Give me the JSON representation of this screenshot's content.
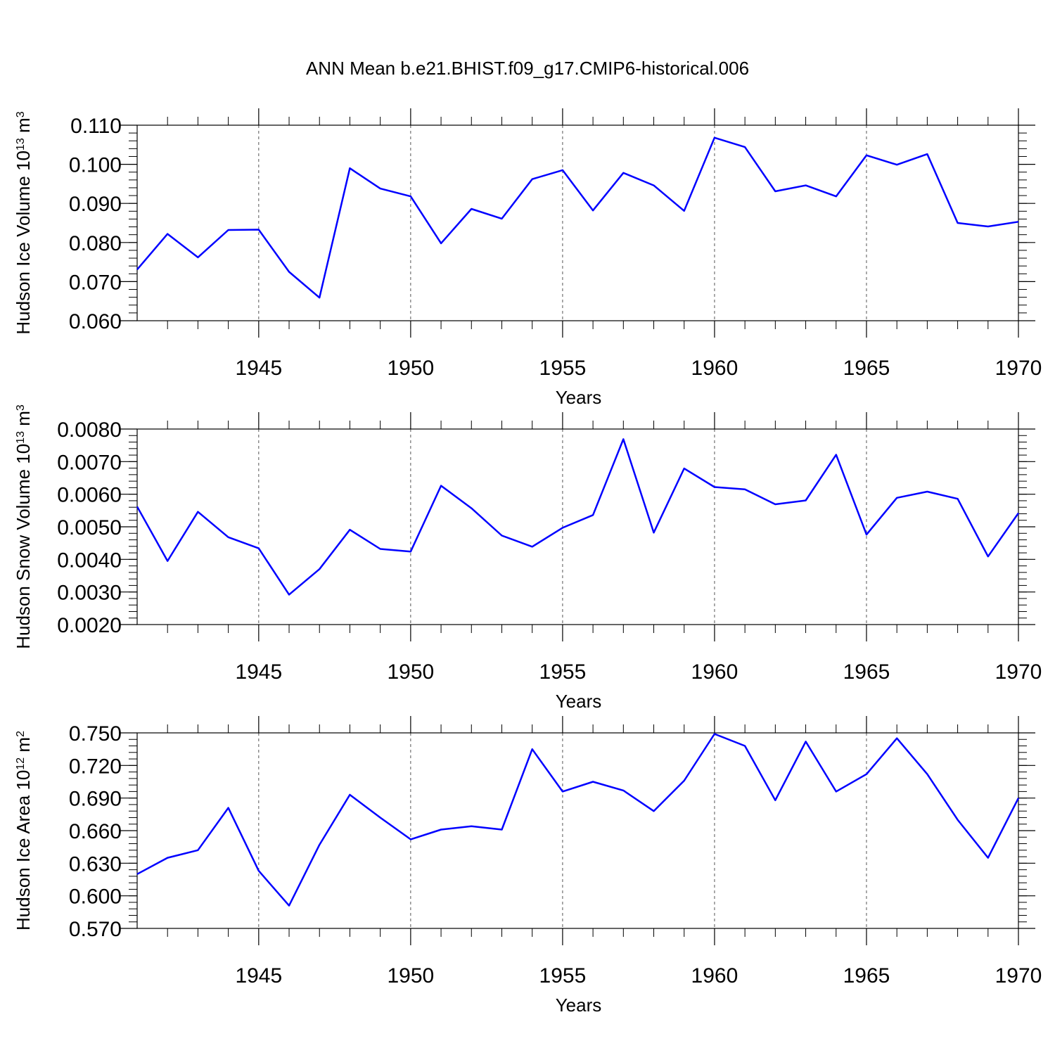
{
  "title": "ANN Mean b.e21.BHIST.f09_g17.CMIP6-historical.006",
  "colors": {
    "series": "#0000ff",
    "axis": "#000000",
    "grid": "#555555"
  },
  "chart_data": [
    {
      "type": "line",
      "title": "",
      "xlabel": "Years",
      "ylabel": "Hudson Ice Volume 10",
      "ylabel_exponent": "13",
      "ylabel_unit": "m",
      "ylabel_unit_exponent": "3",
      "xlim": [
        1941,
        1970
      ],
      "ylim": [
        0.06,
        0.11
      ],
      "x_ticks": [
        1945,
        1950,
        1955,
        1960,
        1965,
        1970
      ],
      "x_tick_labels": [
        "1945",
        "1950",
        "1955",
        "1960",
        "1965",
        "1970"
      ],
      "y_ticks": [
        0.06,
        0.07,
        0.08,
        0.09,
        0.1,
        0.11
      ],
      "y_tick_labels": [
        "0.060",
        "0.070",
        "0.080",
        "0.090",
        "0.100",
        "0.110"
      ],
      "y_minor_step": 0.002,
      "grid": "vertical dashed at major x ticks",
      "x": [
        1941,
        1942,
        1943,
        1944,
        1945,
        1946,
        1947,
        1948,
        1949,
        1950,
        1951,
        1952,
        1953,
        1954,
        1955,
        1956,
        1957,
        1958,
        1959,
        1960,
        1961,
        1962,
        1963,
        1964,
        1965,
        1966,
        1967,
        1968,
        1969,
        1970
      ],
      "series": [
        {
          "color": "#0000ff",
          "values": [
            0.0731,
            0.0822,
            0.0762,
            0.0832,
            0.0833,
            0.0725,
            0.0659,
            0.099,
            0.0938,
            0.0918,
            0.0798,
            0.0886,
            0.0861,
            0.0962,
            0.0985,
            0.0882,
            0.0978,
            0.0946,
            0.0881,
            0.1068,
            0.1044,
            0.0931,
            0.0946,
            0.0918,
            0.1023,
            0.0999,
            0.1026,
            0.085,
            0.0841,
            0.0853
          ]
        }
      ]
    },
    {
      "type": "line",
      "title": "",
      "xlabel": "Years",
      "ylabel": "Hudson Snow Volume 10",
      "ylabel_exponent": "13",
      "ylabel_unit": "m",
      "ylabel_unit_exponent": "3",
      "xlim": [
        1941,
        1970
      ],
      "ylim": [
        0.002,
        0.008
      ],
      "x_ticks": [
        1945,
        1950,
        1955,
        1960,
        1965,
        1970
      ],
      "x_tick_labels": [
        "1945",
        "1950",
        "1955",
        "1960",
        "1965",
        "1970"
      ],
      "y_ticks": [
        0.002,
        0.003,
        0.004,
        0.005,
        0.006,
        0.007,
        0.008
      ],
      "y_tick_labels": [
        "0.0020",
        "0.0030",
        "0.0040",
        "0.0050",
        "0.0060",
        "0.0070",
        "0.0080"
      ],
      "y_minor_step": 0.0002,
      "grid": "vertical dashed at major x ticks",
      "x": [
        1941,
        1942,
        1943,
        1944,
        1945,
        1946,
        1947,
        1948,
        1949,
        1950,
        1951,
        1952,
        1953,
        1954,
        1955,
        1956,
        1957,
        1958,
        1959,
        1960,
        1961,
        1962,
        1963,
        1964,
        1965,
        1966,
        1967,
        1968,
        1969,
        1970
      ],
      "series": [
        {
          "color": "#0000ff",
          "values": [
            0.00562,
            0.00395,
            0.00546,
            0.00468,
            0.00434,
            0.00292,
            0.0037,
            0.00491,
            0.00432,
            0.00424,
            0.00626,
            0.00557,
            0.00473,
            0.00439,
            0.00497,
            0.00536,
            0.00769,
            0.00482,
            0.00679,
            0.00622,
            0.00615,
            0.00569,
            0.00581,
            0.00721,
            0.00476,
            0.00589,
            0.00608,
            0.00586,
            0.00409,
            0.00542
          ]
        }
      ]
    },
    {
      "type": "line",
      "title": "",
      "xlabel": "Years",
      "ylabel": "Hudson Ice Area 10",
      "ylabel_exponent": "12",
      "ylabel_unit": "m",
      "ylabel_unit_exponent": "2",
      "xlim": [
        1941,
        1970
      ],
      "ylim": [
        0.57,
        0.75
      ],
      "x_ticks": [
        1945,
        1950,
        1955,
        1960,
        1965,
        1970
      ],
      "x_tick_labels": [
        "1945",
        "1950",
        "1955",
        "1960",
        "1965",
        "1970"
      ],
      "y_ticks": [
        0.57,
        0.6,
        0.63,
        0.66,
        0.69,
        0.72,
        0.75
      ],
      "y_tick_labels": [
        "0.570",
        "0.600",
        "0.630",
        "0.660",
        "0.690",
        "0.720",
        "0.750"
      ],
      "y_minor_step": 0.006,
      "grid": "vertical dashed at major x ticks",
      "x": [
        1941,
        1942,
        1943,
        1944,
        1945,
        1946,
        1947,
        1948,
        1949,
        1950,
        1951,
        1952,
        1953,
        1954,
        1955,
        1956,
        1957,
        1958,
        1959,
        1960,
        1961,
        1962,
        1963,
        1964,
        1965,
        1966,
        1967,
        1968,
        1969,
        1970
      ],
      "series": [
        {
          "color": "#0000ff",
          "values": [
            0.62,
            0.635,
            0.642,
            0.681,
            0.623,
            0.591,
            0.647,
            0.693,
            0.672,
            0.652,
            0.661,
            0.664,
            0.661,
            0.735,
            0.696,
            0.705,
            0.697,
            0.678,
            0.706,
            0.749,
            0.738,
            0.688,
            0.742,
            0.696,
            0.712,
            0.745,
            0.712,
            0.67,
            0.635,
            0.69
          ]
        }
      ]
    }
  ]
}
